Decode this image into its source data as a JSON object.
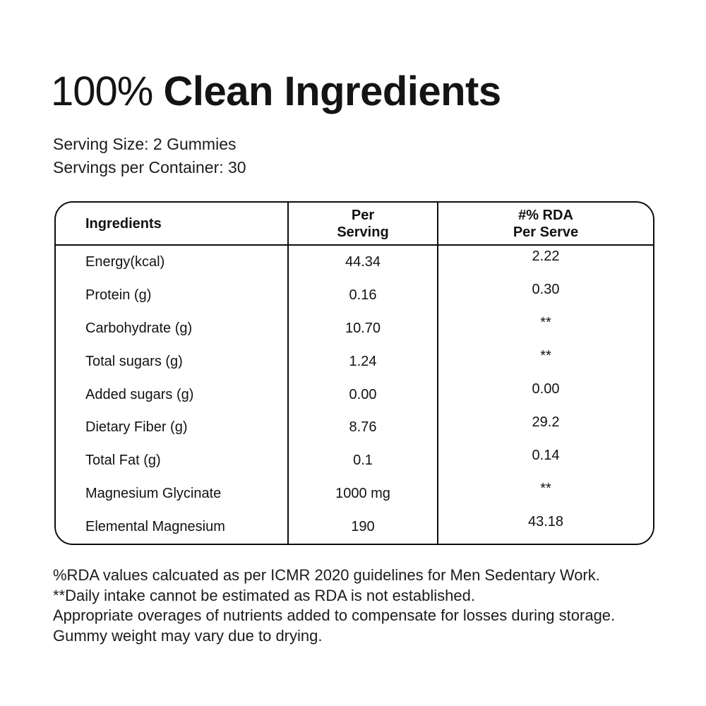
{
  "header": {
    "title_prefix": "100% ",
    "title_emphasis": "Clean Ingredients",
    "serving_size": "Serving Size: 2 Gummies",
    "servings_per_container": "Servings per Container: 30"
  },
  "table": {
    "col1_header": "Ingredients",
    "col2_header": {
      "line1": "Per",
      "line2": "Serving"
    },
    "col3_header": {
      "line1": "#% RDA",
      "line2": "Per Serve"
    },
    "rows": [
      {
        "name": "Energy(kcal)",
        "per_serving": "44.34",
        "rda": "2.22"
      },
      {
        "name": "Protein (g)",
        "per_serving": "0.16",
        "rda": "0.30"
      },
      {
        "name": "Carbohydrate (g)",
        "per_serving": "10.70",
        "rda": "**"
      },
      {
        "name": "Total sugars (g)",
        "per_serving": "1.24",
        "rda": "**"
      },
      {
        "name": "Added sugars (g)",
        "per_serving": "0.00",
        "rda": "0.00"
      },
      {
        "name": "Dietary Fiber (g)",
        "per_serving": "8.76",
        "rda": "29.2"
      },
      {
        "name": "Total Fat (g)",
        "per_serving": "0.1",
        "rda": "0.14"
      },
      {
        "name": "Magnesium Glycinate",
        "per_serving": "1000 mg",
        "rda": "**"
      },
      {
        "name": "Elemental Magnesium",
        "per_serving": "190",
        "rda": "43.18"
      }
    ]
  },
  "footnotes": [
    "%RDA values calcuated as per ICMR 2020 guidelines for Men Sedentary Work.",
    "**Daily intake cannot be estimated as RDA is not established.",
    "Appropriate overages of nutrients added to compensate for losses during storage.",
    "Gummy weight may vary due to drying."
  ],
  "colors": {
    "background": "#ffffff",
    "text": "#121212",
    "border": "#0d0d0d"
  }
}
